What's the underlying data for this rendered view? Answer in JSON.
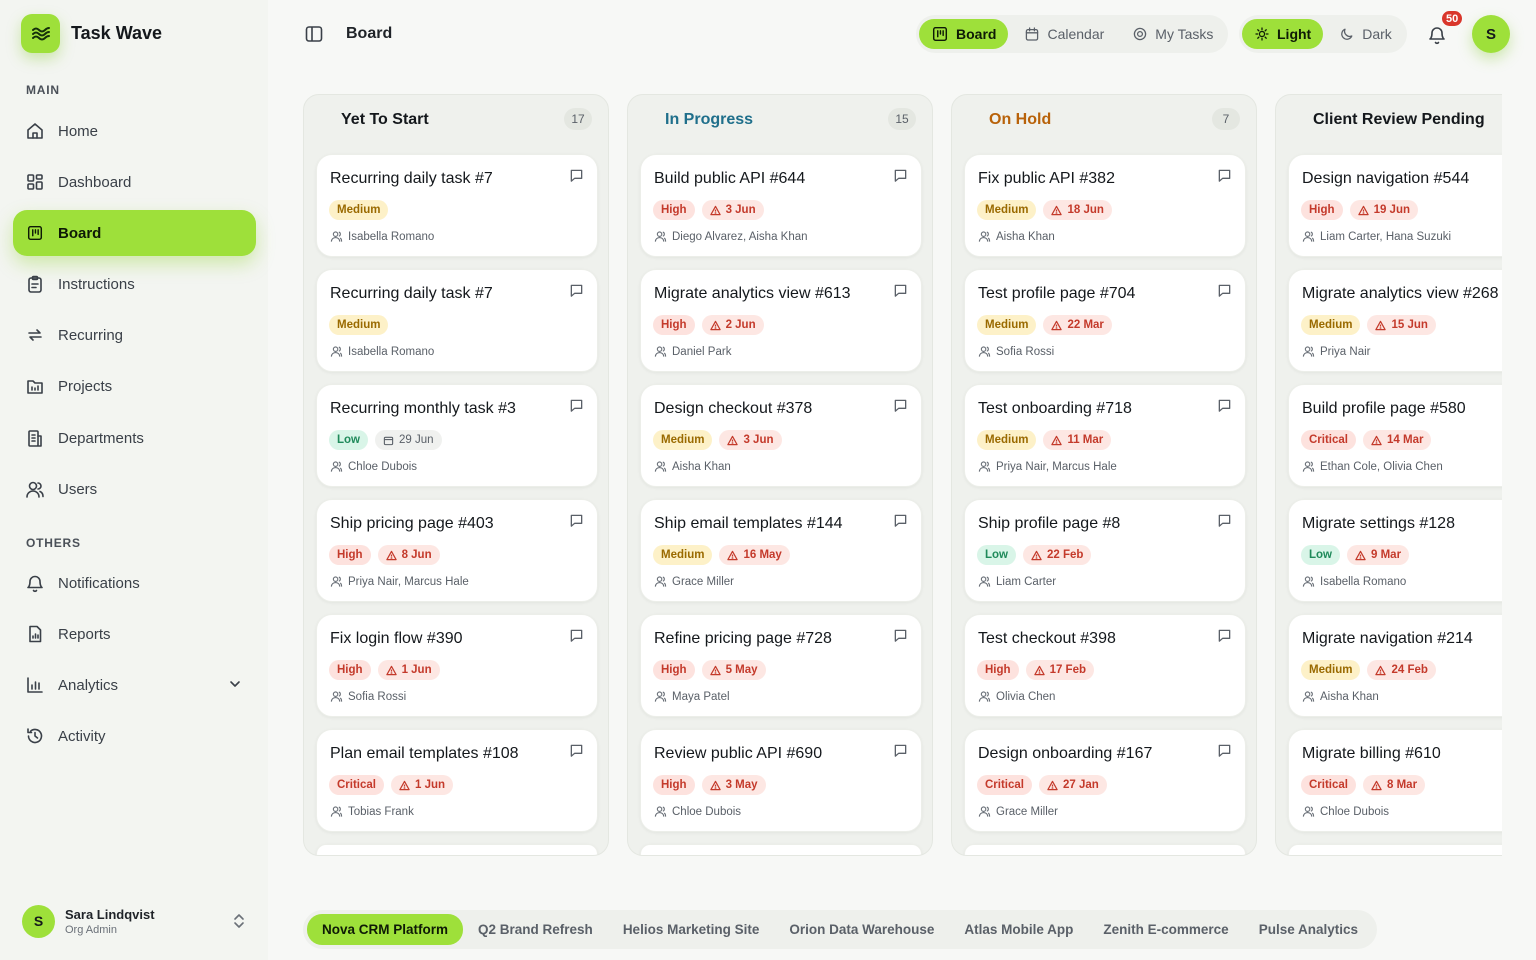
{
  "brand": {
    "name": "Task Wave"
  },
  "sidebar": {
    "main_label": "MAIN",
    "others_label": "OTHERS",
    "main_items": [
      {
        "label": "Home",
        "icon": "home-icon",
        "active": false
      },
      {
        "label": "Dashboard",
        "icon": "dashboard-icon",
        "active": false
      },
      {
        "label": "Board",
        "icon": "board-icon",
        "active": true
      },
      {
        "label": "Instructions",
        "icon": "clipboard-icon",
        "active": false
      },
      {
        "label": "Recurring",
        "icon": "repeat-icon",
        "active": false
      },
      {
        "label": "Projects",
        "icon": "folder-icon",
        "active": false
      },
      {
        "label": "Departments",
        "icon": "building-icon",
        "active": false
      },
      {
        "label": "Users",
        "icon": "users-icon",
        "active": false
      }
    ],
    "other_items": [
      {
        "label": "Notifications",
        "icon": "bell-icon"
      },
      {
        "label": "Reports",
        "icon": "report-icon"
      },
      {
        "label": "Analytics",
        "icon": "analytics-icon",
        "expandable": true
      },
      {
        "label": "Activity",
        "icon": "history-icon"
      }
    ],
    "user": {
      "initial": "S",
      "name": "Sara Lindqvist",
      "role": "Org Admin"
    }
  },
  "header": {
    "title": "Board",
    "views": [
      {
        "label": "Board",
        "icon": "board-icon",
        "active": true
      },
      {
        "label": "Calendar",
        "icon": "calendar-icon",
        "active": false
      },
      {
        "label": "My Tasks",
        "icon": "target-icon",
        "active": false
      }
    ],
    "themes": [
      {
        "label": "Light",
        "icon": "sun-icon",
        "active": true
      },
      {
        "label": "Dark",
        "icon": "moon-icon",
        "active": false
      }
    ],
    "notification_count": "50",
    "avatar_initial": "S"
  },
  "colors": {
    "accent": "#9ee03a",
    "yet_to_start": "#14181c",
    "in_progress": "#1f6f8b",
    "on_hold": "#b8620a",
    "client_review": "#14181c"
  },
  "columns": [
    {
      "title": "Yet To Start",
      "count": "17",
      "color": "#14181c",
      "cards": [
        {
          "title": "Recurring daily task #7",
          "priority": "Medium",
          "due": "",
          "assignees": "Isabella Romano"
        },
        {
          "title": "Recurring daily task #7",
          "priority": "Medium",
          "due": "",
          "assignees": "Isabella Romano"
        },
        {
          "title": "Recurring monthly task #3",
          "priority": "Low",
          "due": "29 Jun",
          "due_style": "neutral",
          "assignees": "Chloe Dubois"
        },
        {
          "title": "Ship pricing page #403",
          "priority": "High",
          "due": "8 Jun",
          "assignees": "Priya Nair, Marcus Hale"
        },
        {
          "title": "Fix login flow #390",
          "priority": "High",
          "due": "1 Jun",
          "assignees": "Sofia Rossi"
        },
        {
          "title": "Plan email templates #108",
          "priority": "Critical",
          "due": "1 Jun",
          "assignees": "Tobias Frank"
        }
      ]
    },
    {
      "title": "In Progress",
      "count": "15",
      "color": "#1f6f8b",
      "cards": [
        {
          "title": "Build public API #644",
          "priority": "High",
          "due": "3 Jun",
          "assignees": "Diego Alvarez, Aisha Khan"
        },
        {
          "title": "Migrate analytics view #613",
          "priority": "High",
          "due": "2 Jun",
          "assignees": "Daniel Park"
        },
        {
          "title": "Design checkout #378",
          "priority": "Medium",
          "due": "3 Jun",
          "assignees": "Aisha Khan"
        },
        {
          "title": "Ship email templates #144",
          "priority": "Medium",
          "due": "16 May",
          "assignees": "Grace Miller"
        },
        {
          "title": "Refine pricing page #728",
          "priority": "High",
          "due": "5 May",
          "assignees": "Maya Patel"
        },
        {
          "title": "Review public API #690",
          "priority": "High",
          "due": "3 May",
          "assignees": "Chloe Dubois"
        }
      ]
    },
    {
      "title": "On Hold",
      "count": "7",
      "color": "#b8620a",
      "cards": [
        {
          "title": "Fix public API #382",
          "priority": "Medium",
          "due": "18 Jun",
          "assignees": "Aisha Khan"
        },
        {
          "title": "Test profile page #704",
          "priority": "Medium",
          "due": "22 Mar",
          "assignees": "Sofia Rossi"
        },
        {
          "title": "Test onboarding #718",
          "priority": "Medium",
          "due": "11 Mar",
          "assignees": "Priya Nair, Marcus Hale"
        },
        {
          "title": "Ship profile page #8",
          "priority": "Low",
          "due": "22 Feb",
          "assignees": "Liam Carter"
        },
        {
          "title": "Test checkout #398",
          "priority": "High",
          "due": "17 Feb",
          "assignees": "Olivia Chen"
        },
        {
          "title": "Design onboarding #167",
          "priority": "Critical",
          "due": "27 Jan",
          "assignees": "Grace Miller"
        }
      ]
    },
    {
      "title": "Client Review Pending",
      "count": "",
      "color": "#14181c",
      "cards": [
        {
          "title": "Design navigation #544",
          "priority": "High",
          "due": "19 Jun",
          "assignees": "Liam Carter, Hana Suzuki"
        },
        {
          "title": "Migrate analytics view #268",
          "priority": "Medium",
          "due": "15 Jun",
          "assignees": "Priya Nair"
        },
        {
          "title": "Build profile page #580",
          "priority": "Critical",
          "due": "14 Mar",
          "assignees": "Ethan Cole, Olivia Chen"
        },
        {
          "title": "Migrate settings #128",
          "priority": "Low",
          "due": "9 Mar",
          "assignees": "Isabella Romano"
        },
        {
          "title": "Migrate navigation #214",
          "priority": "Medium",
          "due": "24 Feb",
          "assignees": "Aisha Khan"
        },
        {
          "title": "Migrate billing #610",
          "priority": "Critical",
          "due": "8 Mar",
          "assignees": "Chloe Dubois"
        }
      ]
    }
  ],
  "projects": [
    {
      "label": "Nova CRM Platform",
      "active": true
    },
    {
      "label": "Q2 Brand Refresh",
      "active": false
    },
    {
      "label": "Helios Marketing Site",
      "active": false
    },
    {
      "label": "Orion Data Warehouse",
      "active": false
    },
    {
      "label": "Atlas Mobile App",
      "active": false
    },
    {
      "label": "Zenith E-commerce",
      "active": false
    },
    {
      "label": "Pulse Analytics",
      "active": false
    }
  ]
}
